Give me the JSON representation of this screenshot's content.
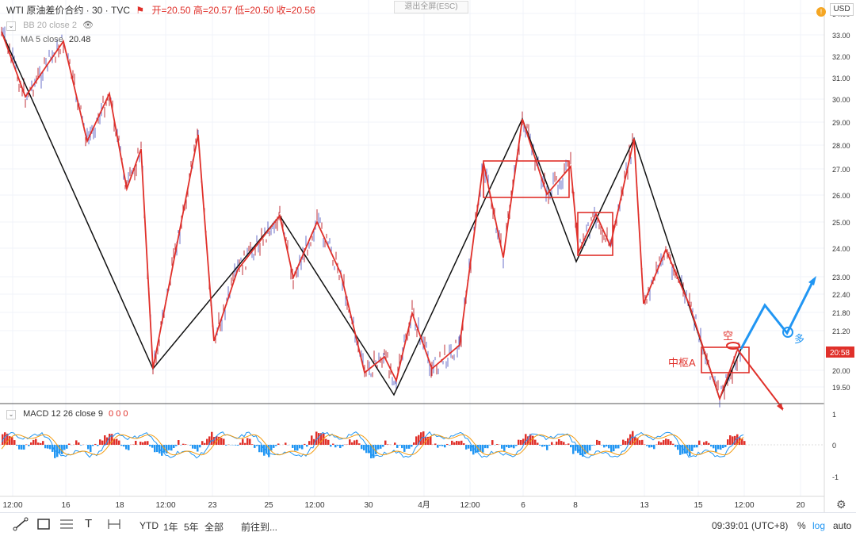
{
  "header": {
    "symbol": "WTI 原油差价合约 · 30 · TVC",
    "open": "开=20.50",
    "high": "高=20.57",
    "low": "低=20.50",
    "close": "收=20.56",
    "exit_fullscreen": "退出全屏(ESC)",
    "currency": "USD"
  },
  "indicators": {
    "bb": "BB 20 close 2",
    "ma": "MA 5 close",
    "ma_value": "20.48",
    "macd": "MACD 12 26 close 9",
    "macd_vals": "0 0 0"
  },
  "price_axis": {
    "labels": [
      "34.00",
      "33.00",
      "32.00",
      "31.00",
      "30.00",
      "29.00",
      "28.00",
      "27.00",
      "26.00",
      "25.00",
      "24.00",
      "23.00",
      "22.40",
      "21.80",
      "21.20",
      "20.00",
      "19.50"
    ],
    "current_price": "20:58"
  },
  "macd_axis": {
    "labels": [
      "1",
      "0",
      "-1"
    ]
  },
  "time_axis": {
    "labels": [
      "12:00",
      "16",
      "18",
      "12:00",
      "23",
      "25",
      "12:00",
      "30",
      "4月",
      "12:00",
      "6",
      "8",
      "13",
      "15",
      "12:00",
      "20"
    ]
  },
  "annotations": {
    "short": "空",
    "long": "多",
    "pivot": "中枢A"
  },
  "colors": {
    "red": "#e0302a",
    "blue": "#2196f3",
    "black": "#111111",
    "macd_up": "#e0302a",
    "macd_down": "#2196f3"
  },
  "bottom_bar": {
    "ranges": [
      "YTD",
      "1年",
      "5年",
      "全部"
    ],
    "goto": "前往到...",
    "clock": "09:39:01 (UTC+8)",
    "percent": "%",
    "log": "log",
    "auto": "auto"
  }
}
